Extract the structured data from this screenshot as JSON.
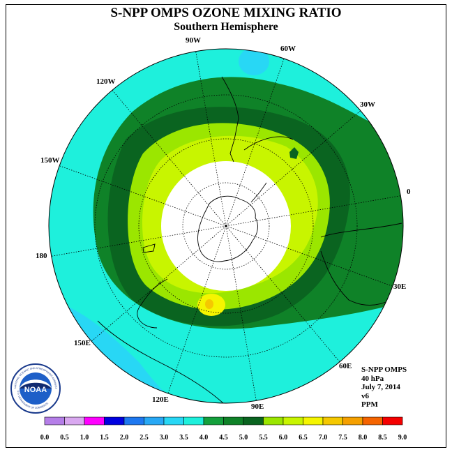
{
  "title": "S-NPP OMPS OZONE MIXING RATIO",
  "subtitle": "Southern Hemisphere",
  "longitude_labels": [
    "90W",
    "60W",
    "30W",
    "0",
    "30E",
    "60E",
    "90E",
    "120E",
    "150E",
    "180",
    "150W",
    "120W"
  ],
  "info": {
    "instrument": "S-NPP OMPS",
    "pressure": "40 hPa",
    "date": "July 7, 2014",
    "version": "v6",
    "units": "PPM"
  },
  "logo": {
    "text": "NOAA",
    "ring_text": "NATIONAL OCEANIC AND ATMOSPHERIC ADMINISTRATION",
    "ring_text_bottom": "U.S. DEPARTMENT OF COMMERCE"
  },
  "colorbar": {
    "ticks": [
      "0.0",
      "0.5",
      "1.0",
      "1.5",
      "2.0",
      "2.5",
      "3.0",
      "3.5",
      "4.0",
      "4.5",
      "5.0",
      "5.5",
      "6.0",
      "6.5",
      "7.0",
      "7.5",
      "8.0",
      "8.5",
      "9.0"
    ],
    "colors": [
      "#b57ee8",
      "#d9a8f0",
      "#ff00ff",
      "#0000e0",
      "#1e78f0",
      "#28a8f5",
      "#28d7f5",
      "#1ef0dc",
      "#14a03c",
      "#0f8228",
      "#0a6420",
      "#9be600",
      "#c8f500",
      "#f5f500",
      "#f5c800",
      "#f5a000",
      "#f56400",
      "#f50000",
      "#8c5a3c"
    ]
  }
}
